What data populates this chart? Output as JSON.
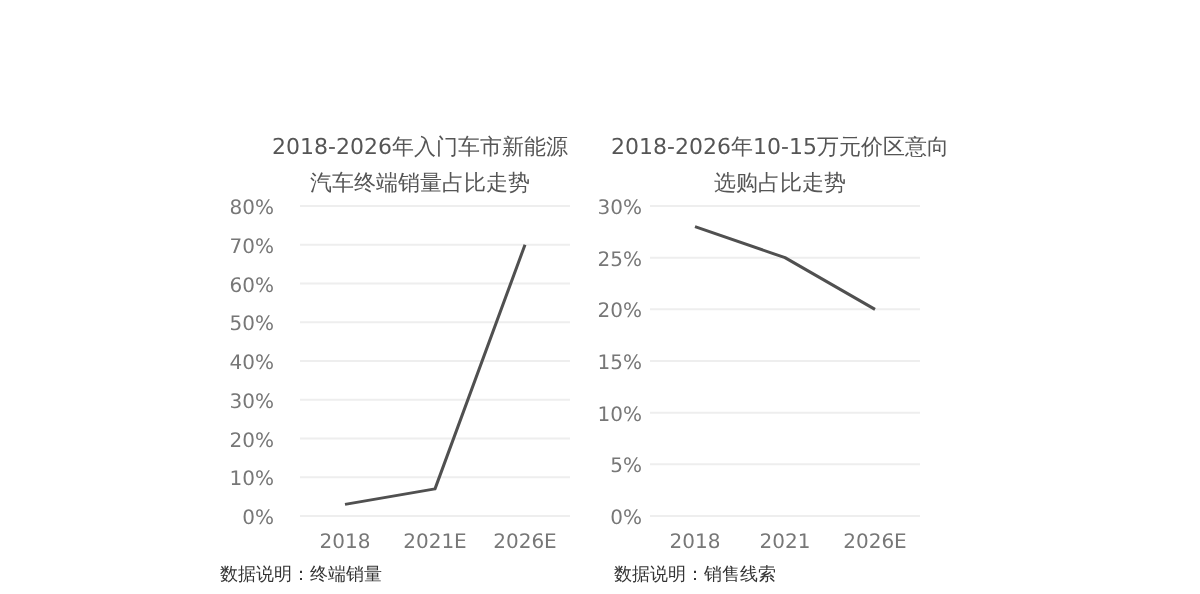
{
  "chart_data": [
    {
      "type": "line",
      "title": "2018-2026年入门车市新能源汽车终端销量占比走势",
      "categories": [
        "2018",
        "2021E",
        "2026E"
      ],
      "series": [
        {
          "color": "#505050",
          "values": [
            3,
            7,
            70
          ]
        }
      ],
      "ylim": [
        0,
        80
      ],
      "yticks": [
        {
          "value": 0,
          "label": "0%"
        },
        {
          "value": 10,
          "label": "10%"
        },
        {
          "value": 20,
          "label": "20%"
        },
        {
          "value": 30,
          "label": "30%"
        },
        {
          "value": 40,
          "label": "40%"
        },
        {
          "value": 50,
          "label": "50%"
        },
        {
          "value": 60,
          "label": "60%"
        },
        {
          "value": 70,
          "label": "70%"
        },
        {
          "value": 80,
          "label": "80%"
        }
      ],
      "grid": "y",
      "marker": "none",
      "line_style": "solid",
      "annotations": [
        "数据说明：终端销量"
      ]
    },
    {
      "type": "line",
      "title": "2018-2026年10-15万元价区意向选购占比走势",
      "categories": [
        "2018",
        "2021",
        "2026E"
      ],
      "series": [
        {
          "color": "#505050",
          "values": [
            28,
            25,
            20
          ]
        }
      ],
      "ylim": [
        0,
        30
      ],
      "yticks": [
        {
          "value": 0,
          "label": "0%"
        },
        {
          "value": 5,
          "label": "5%"
        },
        {
          "value": 10,
          "label": "10%"
        },
        {
          "value": 15,
          "label": "15%"
        },
        {
          "value": 20,
          "label": "20%"
        },
        {
          "value": 25,
          "label": "25%"
        },
        {
          "value": 30,
          "label": "30%"
        }
      ],
      "grid": "y",
      "marker": "none",
      "line_style": "solid",
      "annotations": [
        "数据说明：销售线索"
      ]
    }
  ]
}
